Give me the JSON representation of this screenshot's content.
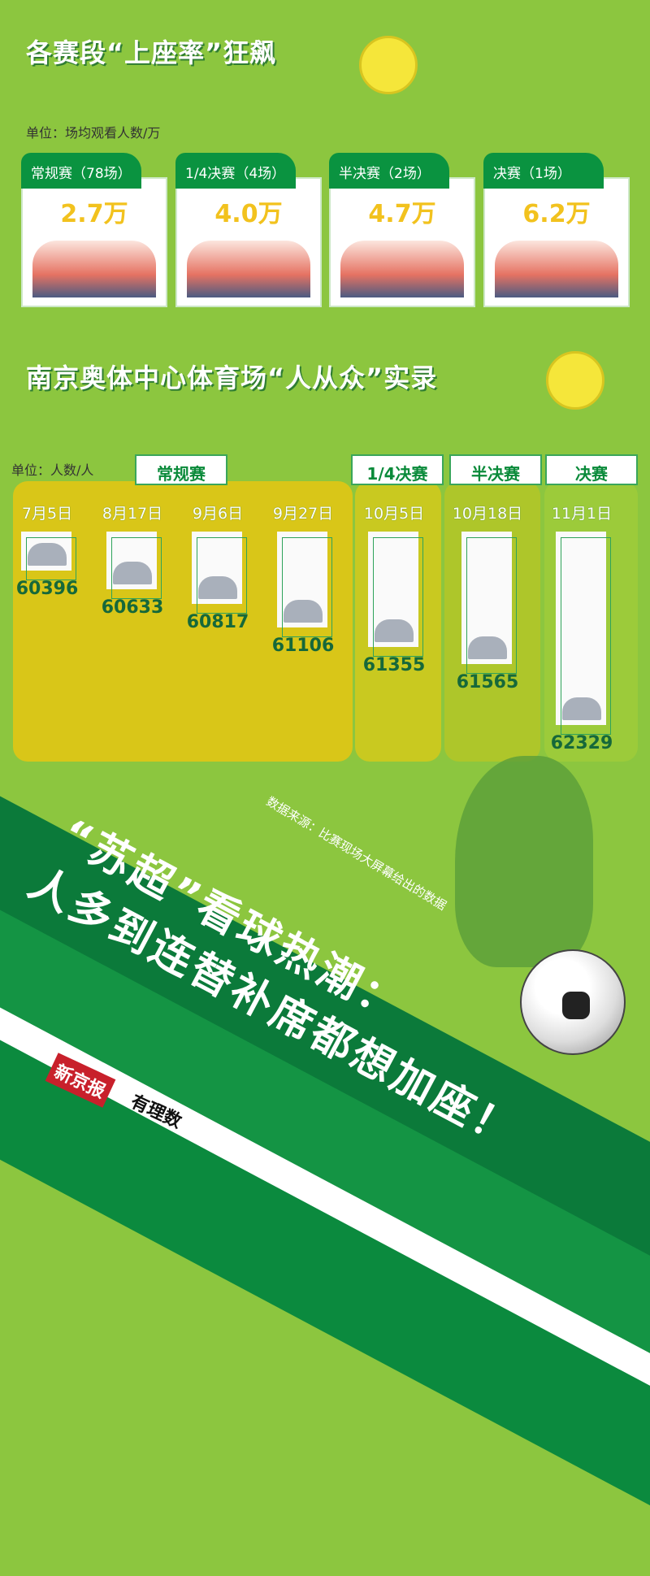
{
  "section1": {
    "title": "各赛段“上座率”狂飙",
    "unit": "单位：场均观看人数/万",
    "cards": [
      {
        "label": "常规赛（78场）",
        "value": "2.7万"
      },
      {
        "label": "1/4决赛（4场）",
        "value": "4.0万"
      },
      {
        "label": "半决赛（2场）",
        "value": "4.7万"
      },
      {
        "label": "决赛（1场）",
        "value": "6.2万"
      }
    ]
  },
  "section2": {
    "title": "南京奥体中心体育场“人从众”实录",
    "unit": "单位：人数/人",
    "stages": [
      "常规赛",
      "1/4决赛",
      "半决赛",
      "决赛"
    ]
  },
  "chart_data": {
    "type": "bar",
    "categories": [
      "7月5日",
      "8月17日",
      "9月6日",
      "9月27日",
      "10月5日",
      "10月18日",
      "11月1日"
    ],
    "values": [
      60396,
      60633,
      60817,
      61106,
      61355,
      61565,
      62329
    ],
    "stage_of": [
      "常规赛",
      "常规赛",
      "常规赛",
      "常规赛",
      "1/4决赛",
      "半决赛",
      "决赛"
    ],
    "ylabel": "单位：人数/人"
  },
  "headline": {
    "line1": "“苏超”看球热潮：",
    "line2": "人多到连替补席都想加座！"
  },
  "source": "数据来源：比赛现场大屏幕给出的数据",
  "logo": {
    "brand": "新京报",
    "sub": "有理数"
  },
  "colors": {
    "background": "#8cc63f",
    "dark_green": "#0a9340",
    "accent_yellow": "#f2c21e",
    "panel_yellow": "#d9c618"
  }
}
